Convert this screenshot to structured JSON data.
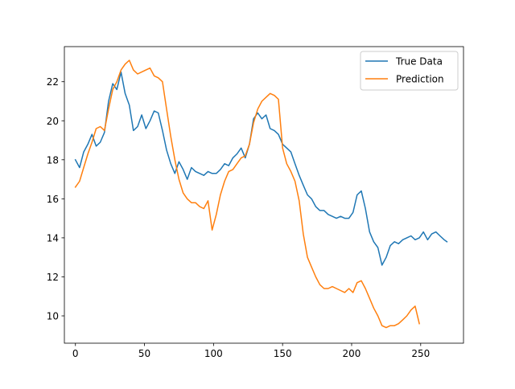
{
  "chart_data": {
    "type": "line",
    "title": "",
    "xlabel": "",
    "ylabel": "",
    "xlim": [
      -8,
      281
    ],
    "ylim": [
      8.6,
      23.8
    ],
    "xticks": [
      0,
      50,
      100,
      150,
      200,
      250
    ],
    "yticks": [
      10,
      12,
      14,
      16,
      18,
      20,
      22
    ],
    "grid": false,
    "legend": {
      "placement": "top-right"
    },
    "series": [
      {
        "name": "True Data",
        "color": "#1f77b4",
        "x": [
          0,
          3,
          6,
          9,
          12,
          15,
          18,
          21,
          24,
          27,
          30,
          33,
          36,
          39,
          42,
          45,
          48,
          51,
          54,
          57,
          60,
          63,
          66,
          69,
          72,
          75,
          78,
          81,
          84,
          87,
          90,
          93,
          96,
          99,
          102,
          105,
          108,
          111,
          114,
          117,
          120,
          123,
          126,
          129,
          132,
          135,
          138,
          141,
          144,
          147,
          150,
          153,
          156,
          159,
          162,
          165,
          168,
          171,
          174,
          177,
          180,
          183,
          186,
          189,
          192,
          195,
          198,
          201,
          204,
          207,
          210,
          213,
          216,
          219,
          222,
          225,
          228,
          231,
          234,
          237,
          240,
          243,
          246,
          249,
          252,
          255,
          258,
          261,
          264,
          267,
          269
        ],
        "y": [
          18.0,
          17.6,
          18.4,
          18.8,
          19.3,
          18.7,
          18.9,
          19.4,
          21.0,
          21.9,
          21.6,
          22.5,
          21.4,
          20.8,
          19.5,
          19.7,
          20.3,
          19.6,
          20.0,
          20.5,
          20.4,
          19.5,
          18.5,
          17.8,
          17.3,
          17.9,
          17.5,
          17.0,
          17.6,
          17.4,
          17.3,
          17.2,
          17.4,
          17.3,
          17.3,
          17.5,
          17.8,
          17.7,
          18.1,
          18.3,
          18.6,
          18.1,
          18.8,
          20.1,
          20.4,
          20.1,
          20.3,
          19.6,
          19.5,
          19.3,
          18.8,
          18.6,
          18.4,
          17.8,
          17.2,
          16.7,
          16.2,
          16.0,
          15.6,
          15.4,
          15.4,
          15.2,
          15.1,
          15.0,
          15.1,
          15.0,
          15.0,
          15.3,
          16.2,
          16.4,
          15.5,
          14.3,
          13.8,
          13.5,
          12.6,
          13.0,
          13.6,
          13.8,
          13.7,
          13.9,
          14.0,
          14.1,
          13.9,
          14.0,
          14.3,
          13.9,
          14.2,
          14.3,
          14.1,
          13.9,
          13.8
        ]
      },
      {
        "name": "Prediction",
        "color": "#ff7f0e",
        "x": [
          0,
          3,
          6,
          9,
          12,
          15,
          18,
          21,
          24,
          27,
          30,
          33,
          36,
          39,
          42,
          45,
          48,
          51,
          54,
          57,
          60,
          63,
          66,
          69,
          72,
          75,
          78,
          81,
          84,
          87,
          90,
          93,
          96,
          99,
          102,
          105,
          108,
          111,
          114,
          117,
          120,
          123,
          126,
          129,
          132,
          135,
          138,
          141,
          144,
          147,
          150,
          153,
          156,
          159,
          162,
          165,
          168,
          171,
          174,
          177,
          180,
          183,
          186,
          189,
          192,
          195,
          198,
          201,
          204,
          207,
          210,
          213,
          216,
          219,
          222,
          225,
          228,
          231,
          234,
          237,
          240,
          243,
          246,
          249
        ],
        "y": [
          16.6,
          16.9,
          17.6,
          18.3,
          18.9,
          19.6,
          19.7,
          19.5,
          20.6,
          21.6,
          22.0,
          22.6,
          22.9,
          23.1,
          22.6,
          22.4,
          22.5,
          22.6,
          22.7,
          22.3,
          22.2,
          22.0,
          20.6,
          19.2,
          18.0,
          17.0,
          16.3,
          16.0,
          15.8,
          15.8,
          15.6,
          15.5,
          15.9,
          14.4,
          15.2,
          16.2,
          16.9,
          17.4,
          17.5,
          17.8,
          18.1,
          18.2,
          18.8,
          19.9,
          20.6,
          21.0,
          21.2,
          21.4,
          21.3,
          21.1,
          18.6,
          17.8,
          17.4,
          16.9,
          15.9,
          14.2,
          13.0,
          12.5,
          12.0,
          11.6,
          11.4,
          11.4,
          11.5,
          11.4,
          11.3,
          11.2,
          11.4,
          11.2,
          11.7,
          11.8,
          11.4,
          10.9,
          10.4,
          10.0,
          9.5,
          9.4,
          9.5,
          9.5,
          9.6,
          9.8,
          10.0,
          10.3,
          10.5,
          9.6
        ]
      }
    ]
  }
}
